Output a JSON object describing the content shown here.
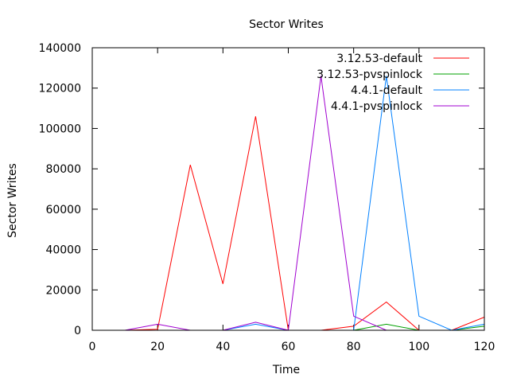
{
  "chart_data": {
    "type": "line",
    "title": "Sector Writes",
    "xlabel": "Time",
    "ylabel": "Sector Writes",
    "xlim": [
      0,
      120
    ],
    "ylim": [
      0,
      140000
    ],
    "x_ticks": [
      0,
      20,
      40,
      60,
      80,
      100,
      120
    ],
    "y_ticks": [
      0,
      20000,
      40000,
      60000,
      80000,
      100000,
      120000,
      140000
    ],
    "grid": false,
    "legend_position": "top-right",
    "series": [
      {
        "name": "3.12.53-default",
        "color": "#ff0000",
        "x": [
          10,
          20,
          30,
          40,
          50,
          60,
          70,
          80,
          90,
          100,
          110,
          120
        ],
        "y": [
          0,
          500,
          82000,
          23000,
          106000,
          0,
          0,
          2000,
          14000,
          0,
          0,
          6500
        ]
      },
      {
        "name": "3.12.53-pvspinlock",
        "color": "#00a000",
        "x": [
          80,
          90,
          100,
          110,
          120
        ],
        "y": [
          0,
          3000,
          0,
          0,
          2000
        ]
      },
      {
        "name": "4.4.1-default",
        "color": "#0080ff",
        "x": [
          40,
          50,
          60,
          70,
          80,
          90,
          100,
          110,
          120
        ],
        "y": [
          0,
          3000,
          0,
          0,
          0,
          126000,
          7000,
          0,
          3000
        ]
      },
      {
        "name": "4.4.1-pvspinlock",
        "color": "#a000d0",
        "x": [
          10,
          20,
          30,
          40,
          50,
          60,
          70,
          80,
          90
        ],
        "y": [
          0,
          3000,
          0,
          0,
          4000,
          0,
          126000,
          7000,
          0
        ]
      }
    ]
  }
}
